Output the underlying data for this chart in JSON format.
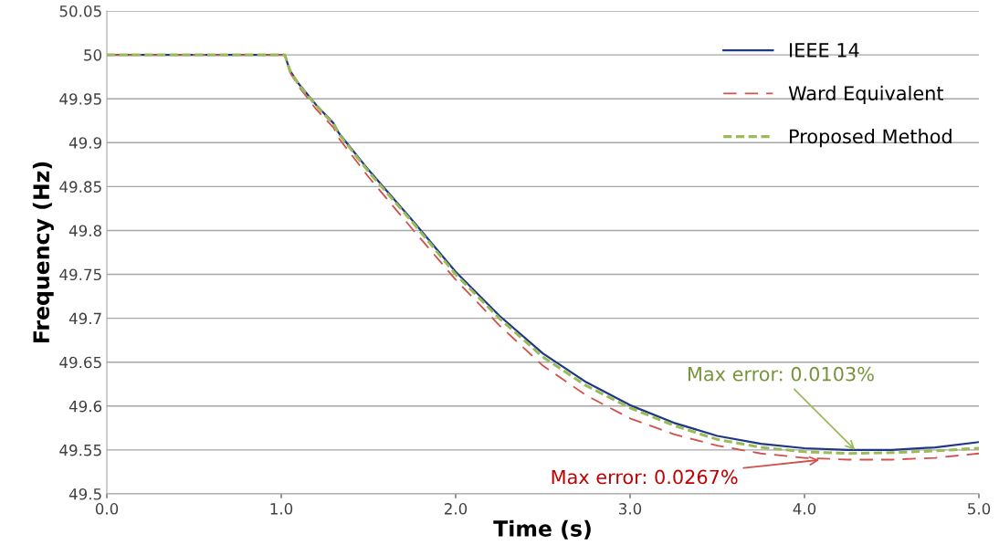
{
  "chart_data": {
    "type": "line",
    "xlabel": "Time (s)",
    "ylabel": "Frequency (Hz)",
    "x": [
      0,
      1.0,
      1.02,
      1.05,
      1.1,
      1.2,
      1.3,
      1.33,
      1.5,
      1.75,
      2.0,
      2.25,
      2.5,
      2.75,
      3.0,
      3.25,
      3.5,
      3.75,
      4.0,
      4.25,
      4.5,
      4.75,
      5.0
    ],
    "series": [
      {
        "name": "IEEE 14",
        "color": "#1f3884",
        "line_style": "solid",
        "values": [
          50,
          50,
          50,
          49.982,
          49.967,
          49.943,
          49.922,
          49.911,
          49.869,
          49.812,
          49.753,
          49.703,
          49.66,
          49.627,
          49.601,
          49.581,
          49.566,
          49.557,
          49.552,
          49.55,
          49.55,
          49.553,
          49.559
        ]
      },
      {
        "name": "Ward Equivalent",
        "color": "#d0504d",
        "line_style": "dashed",
        "values": [
          50,
          50,
          50,
          49.98,
          49.964,
          49.938,
          49.917,
          49.905,
          49.861,
          49.802,
          49.744,
          49.692,
          49.646,
          49.612,
          49.586,
          49.568,
          49.555,
          49.546,
          49.541,
          49.539,
          49.539,
          49.541,
          49.546
        ]
      },
      {
        "name": "Proposed Method",
        "color": "#9bbb59",
        "line_style": "dotted",
        "values": [
          50,
          50,
          50,
          49.982,
          49.966,
          49.942,
          49.921,
          49.91,
          49.867,
          49.81,
          49.75,
          49.7,
          49.656,
          49.623,
          49.598,
          49.578,
          49.562,
          49.553,
          49.548,
          49.546,
          49.547,
          49.549,
          49.552
        ]
      }
    ],
    "xlim": [
      0,
      5
    ],
    "xticks": [
      {
        "value": 0,
        "label": "0.0"
      },
      {
        "value": 1,
        "label": "1.0"
      },
      {
        "value": 2,
        "label": "2.0"
      },
      {
        "value": 3,
        "label": "3.0"
      },
      {
        "value": 4,
        "label": "4.0"
      },
      {
        "value": 5,
        "label": "5.0"
      }
    ],
    "ylim": [
      49.5,
      50.05
    ],
    "yticks": [
      49.5,
      49.55,
      49.6,
      49.65,
      49.7,
      49.75,
      49.8,
      49.85,
      49.9,
      49.95,
      50,
      50.05
    ],
    "grid": "y",
    "legend": "top right",
    "annotations": [
      {
        "text": "Max error: 0.0103%",
        "x": 4.3,
        "y": 49.548
      },
      {
        "text": "Max error: 0.0267%",
        "x": 4.1,
        "y": 49.539
      }
    ]
  }
}
